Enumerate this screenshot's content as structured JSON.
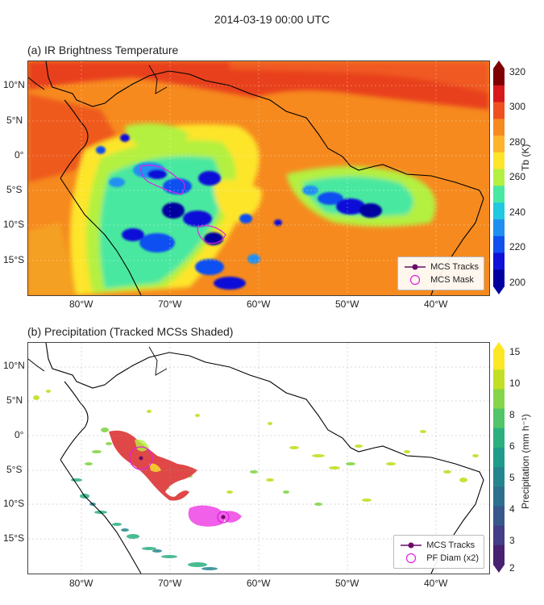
{
  "title": "2014-03-19 00:00 UTC",
  "panel_a": {
    "title": "(a) IR Brightness Temperature",
    "colorbar": {
      "label": "Tb (K)",
      "ticks": [
        "320",
        "300",
        "280",
        "260",
        "240",
        "220",
        "200"
      ],
      "colors": [
        "#7f0000",
        "#d7191c",
        "#f05020",
        "#f68a1e",
        "#fdb32a",
        "#fde52a",
        "#b4f040",
        "#48e8a0",
        "#20c8e0",
        "#2090f0",
        "#1050f0",
        "#1010d8",
        "#0000a0"
      ]
    },
    "legend": {
      "items": [
        "MCS Tracks",
        "MCS Mask"
      ]
    },
    "lat_labels": [
      "10°N",
      "5°N",
      "0°",
      "5°S",
      "10°S",
      "15°S"
    ],
    "lon_labels": [
      "80°W",
      "70°W",
      "60°W",
      "50°W",
      "40°W"
    ]
  },
  "panel_b": {
    "title": "(b) Precipitation (Tracked MCSs Shaded)",
    "colorbar": {
      "label": "Precipitation (mm h⁻¹)",
      "ticks": [
        "15",
        "10",
        "8",
        "6",
        "5",
        "4",
        "3",
        "2"
      ],
      "colors": [
        "#fde725",
        "#c2df23",
        "#86d549",
        "#52c569",
        "#2ab07f",
        "#1e9b8a",
        "#25858e",
        "#2d708e",
        "#38588c",
        "#433e85",
        "#482173"
      ]
    },
    "legend": {
      "items": [
        "MCS Tracks",
        "PF Diam (x2)"
      ]
    },
    "lat_labels": [
      "10°N",
      "5°N",
      "0°",
      "5°S",
      "10°S",
      "15°S"
    ],
    "lon_labels": [
      "80°W",
      "70°W",
      "60°W",
      "50°W",
      "40°W"
    ]
  },
  "colors": {
    "track": "#6a0a6a",
    "mask": "#e020e0",
    "mcs_fill": "#e04848",
    "mcs_fill2": "#f060e8"
  }
}
